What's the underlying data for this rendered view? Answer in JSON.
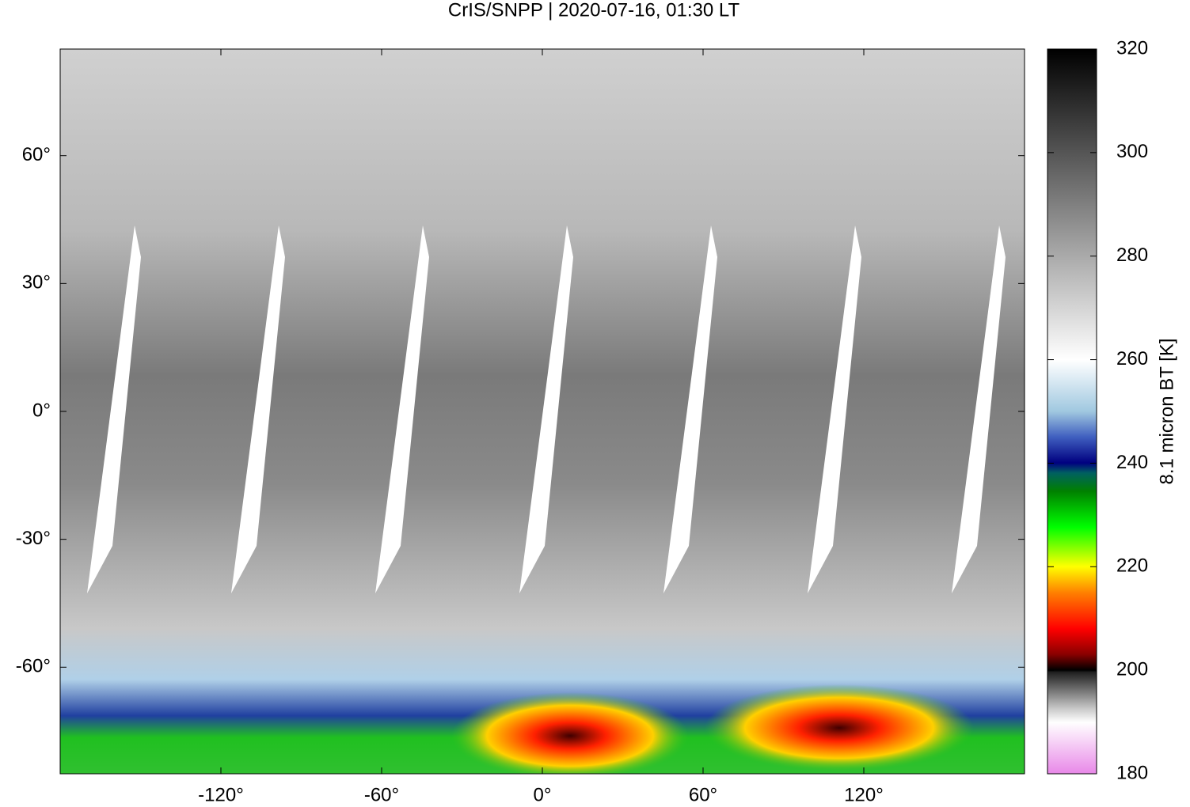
{
  "chart_data": {
    "type": "map",
    "title": "CrIS/SNPP | 2020-07-16, 01:30 LT",
    "colorbar_label": "8.1 micron BT [K]",
    "xlim": [
      -180,
      180
    ],
    "ylim": [
      -85,
      85
    ],
    "xticks": [
      {
        "value": -120,
        "label": "-120°"
      },
      {
        "value": -60,
        "label": "-60°"
      },
      {
        "value": 0,
        "label": "0°"
      },
      {
        "value": 60,
        "label": "60°"
      },
      {
        "value": 120,
        "label": "120°"
      }
    ],
    "yticks": [
      {
        "value": 60,
        "label": "60°"
      },
      {
        "value": 30,
        "label": "30°"
      },
      {
        "value": 0,
        "label": "0°"
      },
      {
        "value": -30,
        "label": "-30°"
      },
      {
        "value": -60,
        "label": "-60°"
      }
    ],
    "clim": [
      180,
      320
    ],
    "cticks": [
      180,
      200,
      220,
      240,
      260,
      280,
      300,
      320
    ]
  }
}
